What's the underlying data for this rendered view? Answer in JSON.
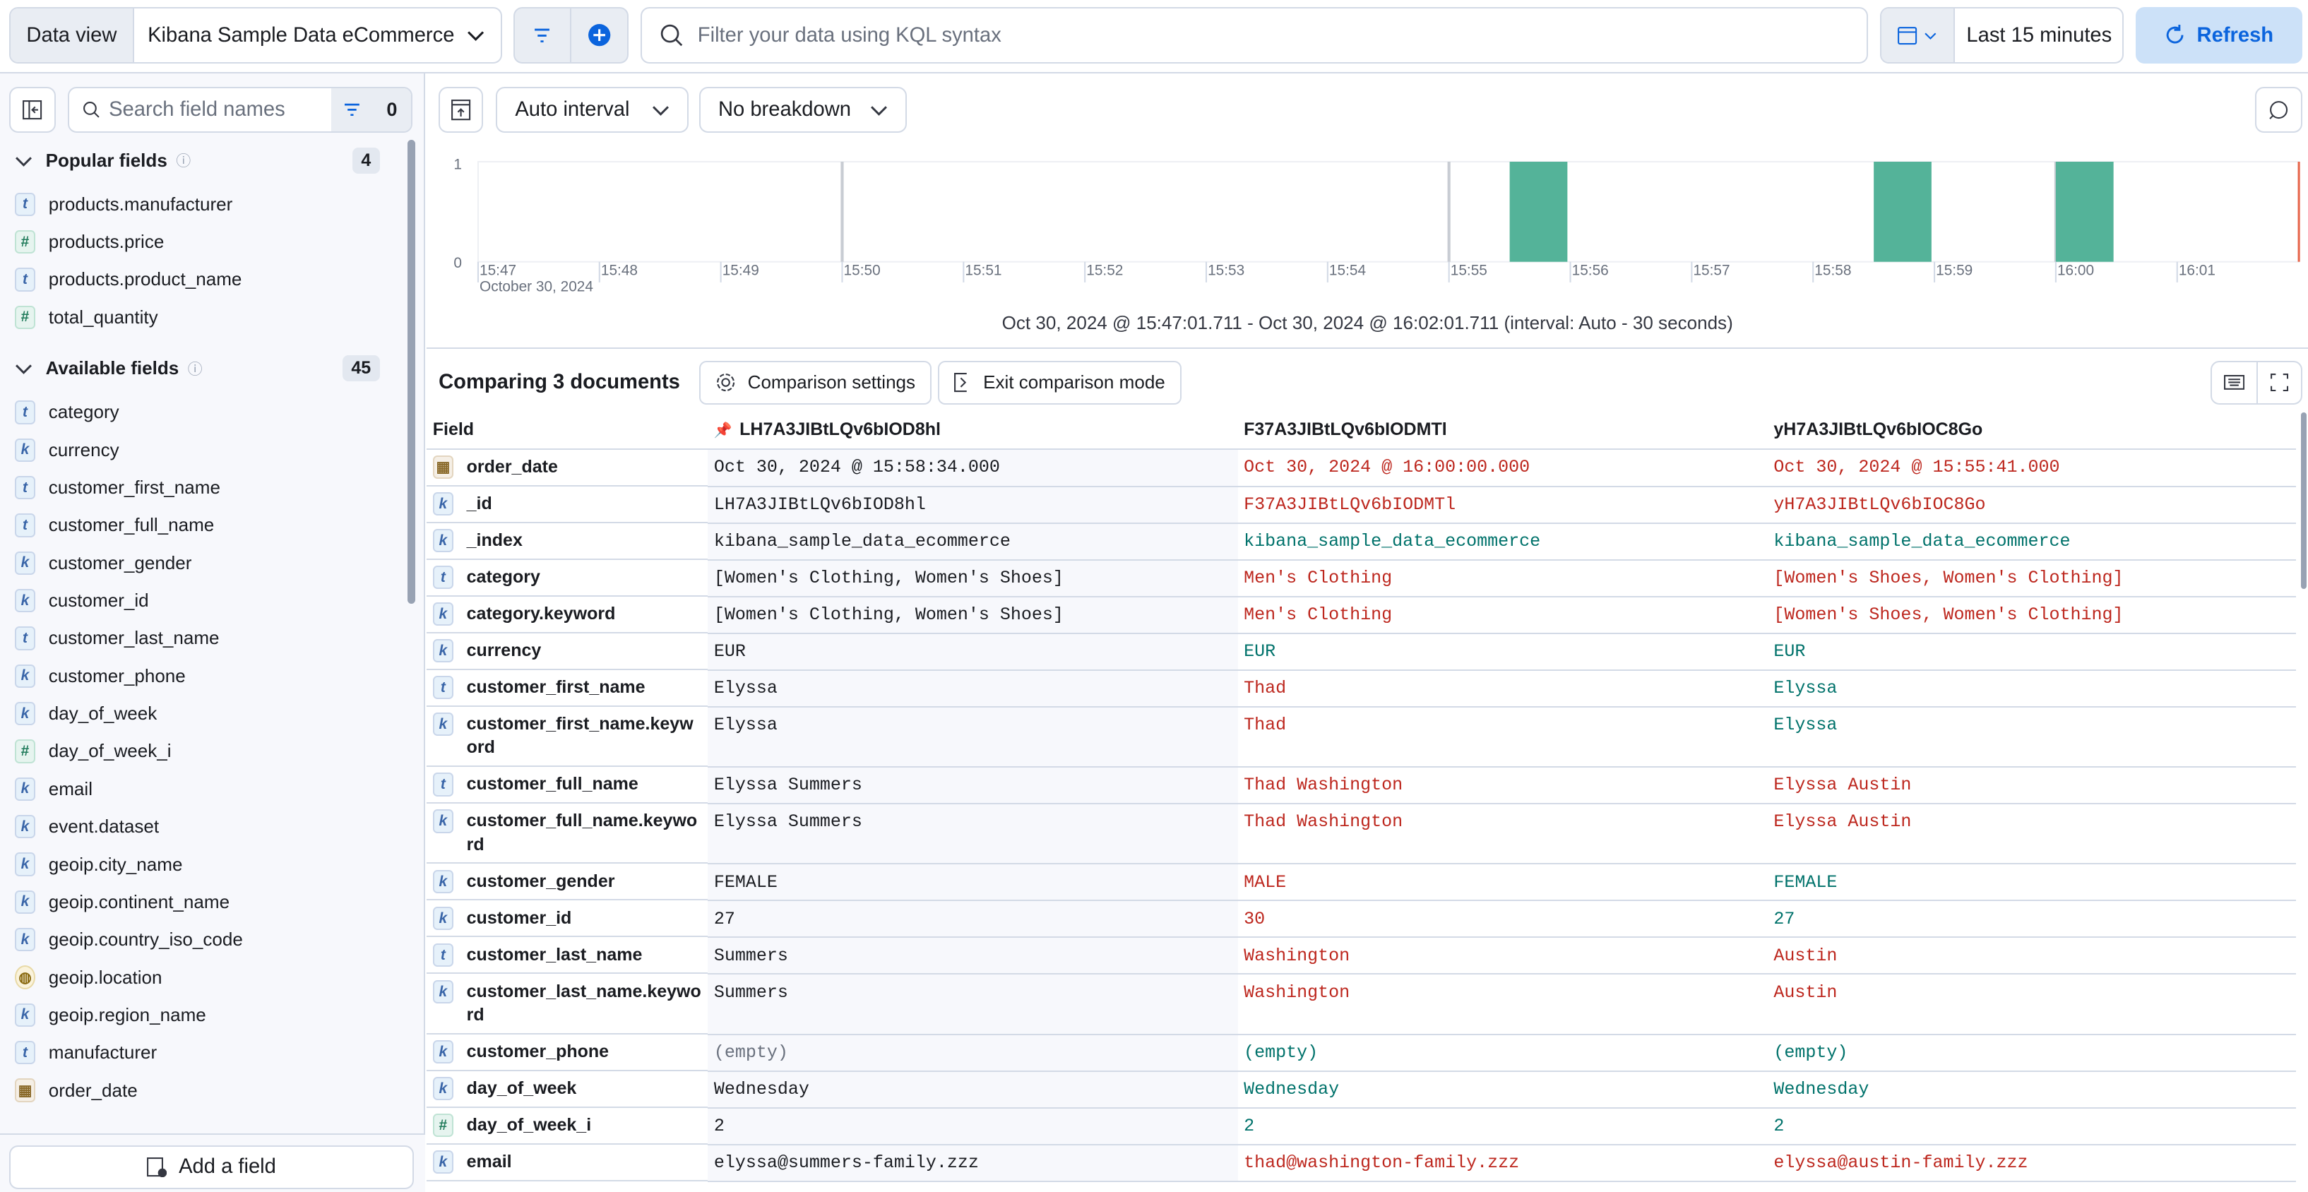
{
  "topbar": {
    "data_view_label": "Data view",
    "data_view_value": "Kibana Sample Data eCommerce",
    "query_placeholder": "Filter your data using KQL syntax",
    "time_range": "Last 15 minutes",
    "refresh_label": "Refresh"
  },
  "sidebar": {
    "search_placeholder": "Search field names",
    "filter_count": "0",
    "popular": {
      "title": "Popular fields",
      "count": "4",
      "items": [
        {
          "type": "t",
          "name": "products.manufacturer"
        },
        {
          "type": "#",
          "name": "products.price"
        },
        {
          "type": "t",
          "name": "products.product_name"
        },
        {
          "type": "#",
          "name": "total_quantity"
        }
      ]
    },
    "available": {
      "title": "Available fields",
      "count": "45",
      "items": [
        {
          "type": "t",
          "name": "category"
        },
        {
          "type": "k",
          "name": "currency"
        },
        {
          "type": "t",
          "name": "customer_first_name"
        },
        {
          "type": "t",
          "name": "customer_full_name"
        },
        {
          "type": "k",
          "name": "customer_gender"
        },
        {
          "type": "k",
          "name": "customer_id"
        },
        {
          "type": "t",
          "name": "customer_last_name"
        },
        {
          "type": "k",
          "name": "customer_phone"
        },
        {
          "type": "k",
          "name": "day_of_week"
        },
        {
          "type": "#",
          "name": "day_of_week_i"
        },
        {
          "type": "k",
          "name": "email"
        },
        {
          "type": "k",
          "name": "event.dataset"
        },
        {
          "type": "k",
          "name": "geoip.city_name"
        },
        {
          "type": "k",
          "name": "geoip.continent_name"
        },
        {
          "type": "k",
          "name": "geoip.country_iso_code"
        },
        {
          "type": "geo",
          "name": "geoip.location"
        },
        {
          "type": "k",
          "name": "geoip.region_name"
        },
        {
          "type": "t",
          "name": "manufacturer"
        },
        {
          "type": "date",
          "name": "order_date"
        }
      ]
    },
    "add_field_label": "Add a field"
  },
  "histogram_toolbar": {
    "interval": "Auto interval",
    "breakdown": "No breakdown"
  },
  "chart_data": {
    "type": "bar",
    "x_ticks": [
      "15:47",
      "15:48",
      "15:49",
      "15:50",
      "15:51",
      "15:52",
      "15:53",
      "15:54",
      "15:55",
      "15:56",
      "15:57",
      "15:58",
      "15:59",
      "16:00",
      "16:01"
    ],
    "x_sublabel": "October 30, 2024",
    "y_ticks": [
      "0",
      "1"
    ],
    "ylim": [
      0,
      1
    ],
    "bars": [
      {
        "x": "15:55:30",
        "count": 1
      },
      {
        "x": "15:58:30",
        "count": 1
      },
      {
        "x": "16:00:00",
        "count": 1
      }
    ],
    "bar_color": "#54b399",
    "caption": "Oct 30, 2024 @ 15:47:01.711 - Oct 30, 2024 @ 16:02:01.711 (interval: Auto - 30 seconds)"
  },
  "comparison": {
    "title": "Comparing 3 documents",
    "settings_label": "Comparison settings",
    "exit_label": "Exit comparison mode",
    "field_header": "Field",
    "docs": [
      "LH7A3JIBtLQv6bIOD8hl",
      "F37A3JIBtLQv6bIODMTl",
      "yH7A3JIBtLQv6bIOC8Go"
    ],
    "rows": [
      {
        "type": "date",
        "field": "order_date",
        "values": [
          "Oct 30, 2024 @ 15:58:34.000",
          "Oct 30, 2024 @ 16:00:00.000",
          "Oct 30, 2024 @ 15:55:41.000"
        ],
        "diff": [
          "red",
          "red"
        ]
      },
      {
        "type": "k",
        "field": "_id",
        "values": [
          "LH7A3JIBtLQv6bIOD8hl",
          "F37A3JIBtLQv6bIODMTl",
          "yH7A3JIBtLQv6bIOC8Go"
        ],
        "diff": [
          "red",
          "red"
        ]
      },
      {
        "type": "k",
        "field": "_index",
        "values": [
          "kibana_sample_data_ecommerce",
          "kibana_sample_data_ecommerce",
          "kibana_sample_data_ecommerce"
        ],
        "diff": [
          "green",
          "green"
        ]
      },
      {
        "type": "t",
        "field": "category",
        "values": [
          "[Women's Clothing, Women's Shoes]",
          "Men's Clothing",
          "[Women's Shoes, Women's Clothing]"
        ],
        "diff": [
          "red",
          "red"
        ]
      },
      {
        "type": "k",
        "field": "category.keyword",
        "values": [
          "[Women's Clothing, Women's Shoes]",
          "Men's Clothing",
          "[Women's Shoes, Women's Clothing]"
        ],
        "diff": [
          "red",
          "red"
        ]
      },
      {
        "type": "k",
        "field": "currency",
        "values": [
          "EUR",
          "EUR",
          "EUR"
        ],
        "diff": [
          "green",
          "green"
        ]
      },
      {
        "type": "t",
        "field": "customer_first_name",
        "values": [
          "Elyssa",
          "Thad",
          "Elyssa"
        ],
        "diff": [
          "red",
          "green"
        ]
      },
      {
        "type": "k",
        "field": "customer_first_name.keyword",
        "values": [
          "Elyssa",
          "Thad",
          "Elyssa"
        ],
        "diff": [
          "red",
          "green"
        ]
      },
      {
        "type": "t",
        "field": "customer_full_name",
        "values": [
          "Elyssa Summers",
          "Thad Washington",
          "Elyssa Austin"
        ],
        "diff": [
          "red",
          "red"
        ]
      },
      {
        "type": "k",
        "field": "customer_full_name.keyword",
        "values": [
          "Elyssa Summers",
          "Thad Washington",
          "Elyssa Austin"
        ],
        "diff": [
          "red",
          "red"
        ]
      },
      {
        "type": "k",
        "field": "customer_gender",
        "values": [
          "FEMALE",
          "MALE",
          "FEMALE"
        ],
        "diff": [
          "red",
          "green"
        ]
      },
      {
        "type": "k",
        "field": "customer_id",
        "values": [
          "27",
          "30",
          "27"
        ],
        "diff": [
          "red",
          "green"
        ]
      },
      {
        "type": "t",
        "field": "customer_last_name",
        "values": [
          "Summers",
          "Washington",
          "Austin"
        ],
        "diff": [
          "red",
          "red"
        ]
      },
      {
        "type": "k",
        "field": "customer_last_name.keyword",
        "values": [
          "Summers",
          "Washington",
          "Austin"
        ],
        "diff": [
          "red",
          "red"
        ]
      },
      {
        "type": "k",
        "field": "customer_phone",
        "values": [
          "(empty)",
          "(empty)",
          "(empty)"
        ],
        "diff": [
          "green",
          "green"
        ]
      },
      {
        "type": "k",
        "field": "day_of_week",
        "values": [
          "Wednesday",
          "Wednesday",
          "Wednesday"
        ],
        "diff": [
          "green",
          "green"
        ]
      },
      {
        "type": "#",
        "field": "day_of_week_i",
        "values": [
          "2",
          "2",
          "2"
        ],
        "diff": [
          "green",
          "green"
        ]
      },
      {
        "type": "k",
        "field": "email",
        "values": [
          "elyssa@summers-family.zzz",
          "thad@washington-family.zzz",
          "elyssa@austin-family.zzz"
        ],
        "diff": [
          "red",
          "red"
        ]
      }
    ]
  }
}
